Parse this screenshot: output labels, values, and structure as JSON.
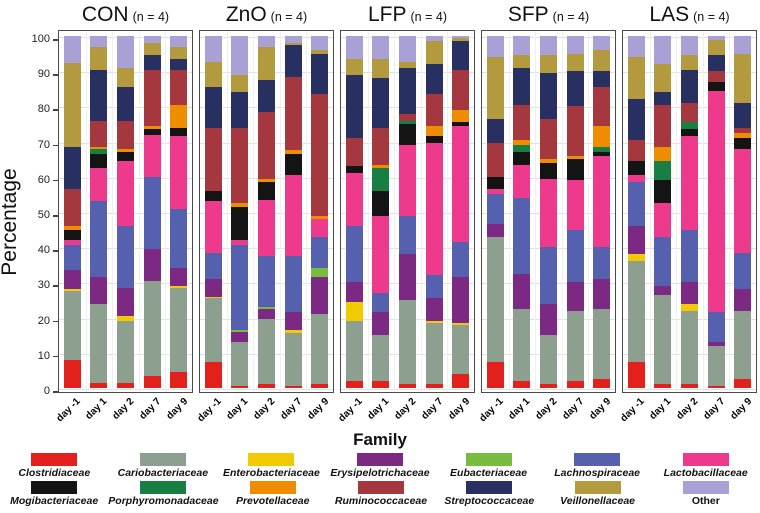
{
  "chart_data": {
    "type": "bar",
    "stacked": true,
    "ylabel": "Percentage",
    "legend_title": "Family",
    "ylim": [
      0,
      100
    ],
    "y_ticks": [
      0,
      10,
      20,
      30,
      40,
      50,
      60,
      70,
      80,
      90,
      100
    ],
    "categories": [
      "day -1",
      "day 1",
      "day 2",
      "day 7",
      "day 9"
    ],
    "grid": true,
    "legend_position": "bottom",
    "families": [
      {
        "name": "Clostridiaceae",
        "color": "#e2201c"
      },
      {
        "name": "Cariobacteriaceae",
        "color": "#8d9f8f"
      },
      {
        "name": "Enterobacteriaceae",
        "color": "#f2ca02"
      },
      {
        "name": "Erysipelotrichaceae",
        "color": "#7b2982"
      },
      {
        "name": "Eubacteriaceae",
        "color": "#77bc3f"
      },
      {
        "name": "Lachnospiraceae",
        "color": "#5560af"
      },
      {
        "name": "Lactobacillaceae",
        "color": "#ee3a8c"
      },
      {
        "name": "Mogibacteriaceae",
        "color": "#141414"
      },
      {
        "name": "Porphyromonadaceae",
        "color": "#177f42"
      },
      {
        "name": "Prevotellaceae",
        "color": "#f08c00"
      },
      {
        "name": "Ruminococcaceae",
        "color": "#a4383e"
      },
      {
        "name": "Streptococcaceae",
        "color": "#273060"
      },
      {
        "name": "Veillonellaceae",
        "color": "#b39a3f"
      },
      {
        "name": "Other",
        "color": "#a9a1d6"
      }
    ],
    "panels": [
      {
        "group": "CON",
        "n_label": "(n = 4)",
        "bars": [
          [
            8,
            19.5,
            0.5,
            5.5,
            0,
            7,
            1.5,
            3,
            0,
            1,
            10.5,
            12,
            24,
            7.5
          ],
          [
            1.5,
            22.5,
            0,
            7.5,
            0,
            21.5,
            9.5,
            4,
            1.5,
            0.5,
            7.5,
            14.5,
            6.5,
            3
          ],
          [
            1.5,
            17.5,
            1.5,
            8,
            0,
            17.5,
            18.5,
            2.5,
            0,
            1,
            8,
            9.5,
            5.5,
            9
          ],
          [
            3.5,
            27,
            0,
            9,
            0,
            20.5,
            12,
            1.5,
            0,
            1,
            16,
            4,
            3.5,
            2
          ],
          [
            4.5,
            24,
            0.5,
            5,
            0,
            17,
            20.5,
            2.5,
            0,
            6.5,
            10,
            3,
            3.5,
            3
          ]
        ]
      },
      {
        "group": "ZnO",
        "n_label": "(n = 4)",
        "bars": [
          [
            7.5,
            18,
            0.5,
            5,
            0,
            7.5,
            14.5,
            3,
            0,
            0,
            18,
            11.5,
            7,
            7.5
          ],
          [
            0.5,
            12.5,
            0,
            3,
            0.5,
            24,
            1.5,
            9.5,
            0,
            1,
            21.5,
            10,
            5,
            11
          ],
          [
            1,
            18.5,
            0,
            3,
            0.5,
            14.5,
            16,
            5,
            0,
            1,
            19,
            9,
            9.5,
            3
          ],
          [
            0.5,
            15,
            1,
            5,
            0,
            16,
            23,
            6,
            0,
            1,
            21,
            9,
            0.5,
            2
          ],
          [
            1,
            20,
            0,
            10.5,
            2.5,
            9,
            5,
            0,
            0,
            1,
            34.5,
            11.5,
            1,
            4
          ]
        ]
      },
      {
        "group": "LFP",
        "n_label": "(n = 4)",
        "bars": [
          [
            2,
            17,
            5.5,
            5.5,
            0,
            16,
            15,
            2,
            0,
            0,
            8,
            18,
            4.5,
            6.5
          ],
          [
            2,
            13,
            0,
            6.5,
            0,
            5.5,
            22,
            7,
            6.5,
            1,
            10.5,
            14,
            5.5,
            6.5
          ],
          [
            1,
            24,
            0,
            13,
            0,
            11,
            20,
            6,
            1,
            0,
            2,
            13,
            1.5,
            7.5
          ],
          [
            1,
            17.5,
            0.5,
            6.5,
            0,
            6.5,
            37.5,
            2,
            0,
            3,
            9,
            8.5,
            6.5,
            1.5
          ],
          [
            4,
            14,
            0.5,
            13,
            0,
            10,
            33,
            1,
            0,
            3.5,
            11.5,
            8,
            1,
            0.5
          ]
        ]
      },
      {
        "group": "SFP",
        "n_label": "(n = 4)",
        "bars": [
          [
            7.5,
            35.5,
            0,
            3.5,
            0,
            8.5,
            1.5,
            3.5,
            0,
            0,
            9.5,
            7,
            17.5,
            6
          ],
          [
            2,
            20.5,
            0,
            10,
            0,
            21.5,
            9.5,
            3.5,
            2,
            1.5,
            10,
            10.5,
            3.5,
            5.5
          ],
          [
            1,
            14,
            0,
            9,
            0,
            16,
            19.5,
            4.5,
            0,
            1,
            11.5,
            13,
            5,
            5.5
          ],
          [
            2,
            20,
            0,
            8,
            0,
            15,
            14,
            6,
            0,
            1,
            14,
            10,
            5,
            5
          ],
          [
            2.5,
            20,
            0,
            8.5,
            0,
            9,
            26,
            1,
            1.5,
            6,
            11,
            4.5,
            6,
            4
          ]
        ]
      },
      {
        "group": "LAS",
        "n_label": "(n = 4)",
        "bars": [
          [
            7.5,
            28.5,
            2,
            8,
            0,
            12.5,
            2,
            4,
            0,
            0,
            6,
            11.5,
            12,
            6
          ],
          [
            1,
            25.5,
            0,
            2.5,
            0,
            14,
            9.5,
            6.5,
            5.5,
            4,
            12,
            3.5,
            8,
            8
          ],
          [
            1,
            21,
            2,
            6,
            0,
            15,
            26.5,
            2,
            2,
            0,
            5.5,
            9.5,
            4,
            5.5
          ],
          [
            0.5,
            11.5,
            0,
            1,
            0,
            8.5,
            63,
            2.5,
            0,
            0,
            3,
            4.5,
            4.5,
            1
          ],
          [
            2.5,
            19.5,
            0,
            6,
            0,
            10.5,
            29.5,
            3,
            0,
            1.5,
            1.5,
            7,
            14,
            5
          ]
        ]
      }
    ]
  }
}
